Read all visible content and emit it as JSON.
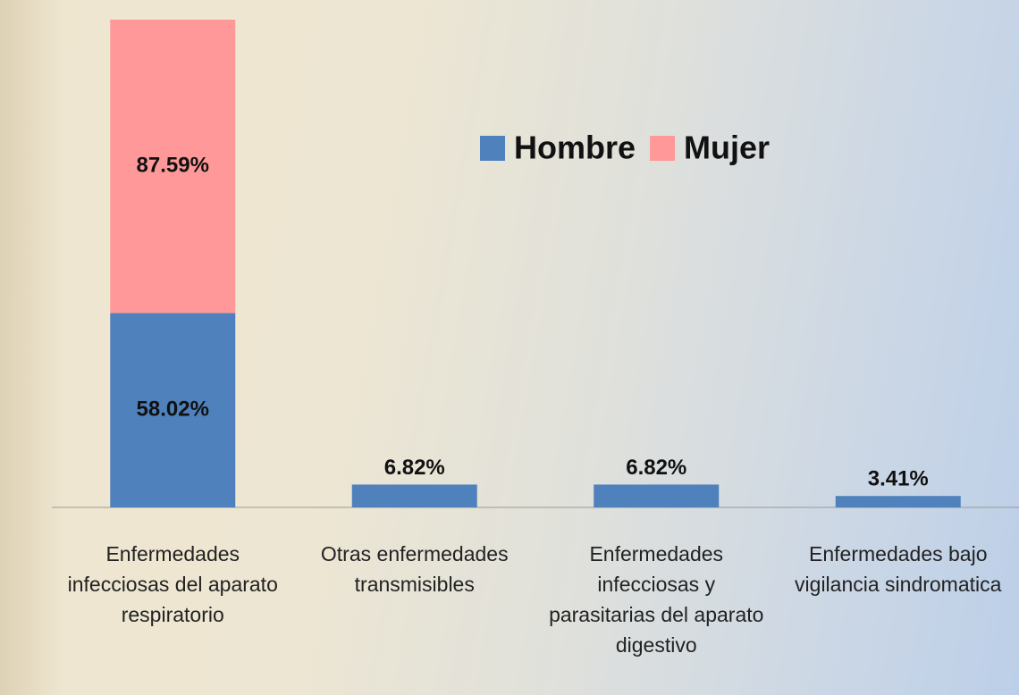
{
  "chart_data": {
    "type": "stacked_bar",
    "categories": [
      "Enfermedades infecciosas del aparato respiratorio",
      "Otras enfermedades transmisibles",
      "Enfermedades infecciosas y parasitarias del aparato digestivo",
      "Enfermedades bajo vigilancia sindromatica"
    ],
    "series": [
      {
        "name": "Hombre",
        "color": "#4f81bd",
        "values": [
          58.02,
          6.82,
          6.82,
          3.41
        ],
        "value_labels": [
          "58.02%",
          "6.82%",
          "6.82%",
          "3.41%"
        ]
      },
      {
        "name": "Mujer",
        "color": "#ff9999",
        "values": [
          87.59,
          null,
          null,
          null
        ],
        "value_labels": [
          "87.59%",
          null,
          null,
          null
        ]
      }
    ]
  }
}
